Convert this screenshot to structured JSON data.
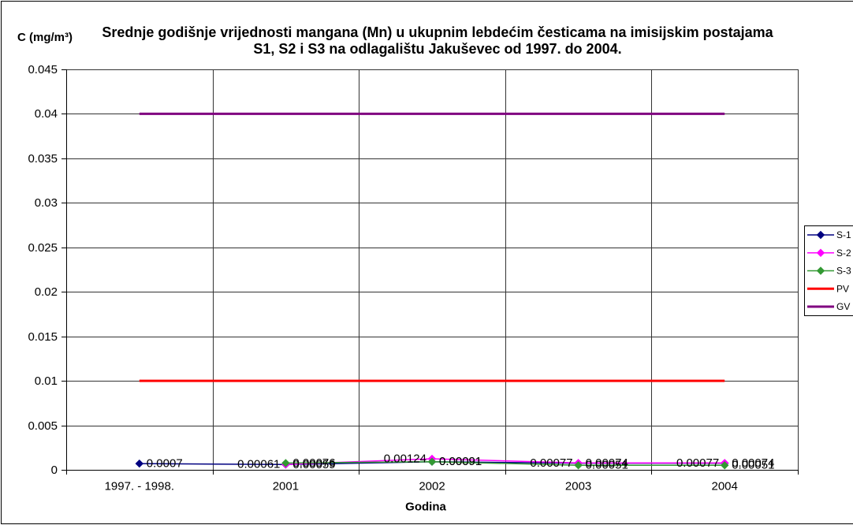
{
  "chart_data": {
    "type": "line",
    "title": "Srednje godišnje vrijednosti mangana (Mn) u ukupnim lebdećim česticama na imisijskim postajama\nS1, S2 i S3 na odlagalištu Jakuševec od 1997. do 2004.",
    "xlabel": "Godina",
    "ylabel": "C (mg/m³)",
    "categories": [
      "1997. - 1998.",
      "2001",
      "2002",
      "2003",
      "2004"
    ],
    "ylim": [
      0,
      0.045
    ],
    "y_tick_labels": [
      "0",
      "0.005",
      "0.01",
      "0.015",
      "0.02",
      "0.025",
      "0.03",
      "0.035",
      "0.04",
      "0.045"
    ],
    "grid": true,
    "legend": "right",
    "series": [
      {
        "name": "S-1",
        "color": "#000080",
        "marker": "diamond",
        "data_labels": "right",
        "values": [
          0.0007,
          0.00059,
          0.00091,
          0.00074,
          0.00074
        ]
      },
      {
        "name": "S-2",
        "color": "#FF00FF",
        "marker": "diamond",
        "data_labels": "left",
        "values": [
          null,
          0.00061,
          0.00124,
          0.00077,
          0.00077
        ]
      },
      {
        "name": "S-3",
        "color": "#339933",
        "marker": "diamond",
        "data_labels": "right",
        "values": [
          null,
          0.00076,
          0.00091,
          0.00051,
          0.00051
        ]
      },
      {
        "name": "PV",
        "color": "#FF0000",
        "marker": "none",
        "data_labels": "none",
        "values": [
          0.01,
          0.01,
          0.01,
          0.01,
          0.01
        ]
      },
      {
        "name": "GV",
        "color": "#800080",
        "marker": "none",
        "data_labels": "none",
        "values": [
          0.04,
          0.04,
          0.04,
          0.04,
          0.04
        ]
      }
    ]
  }
}
